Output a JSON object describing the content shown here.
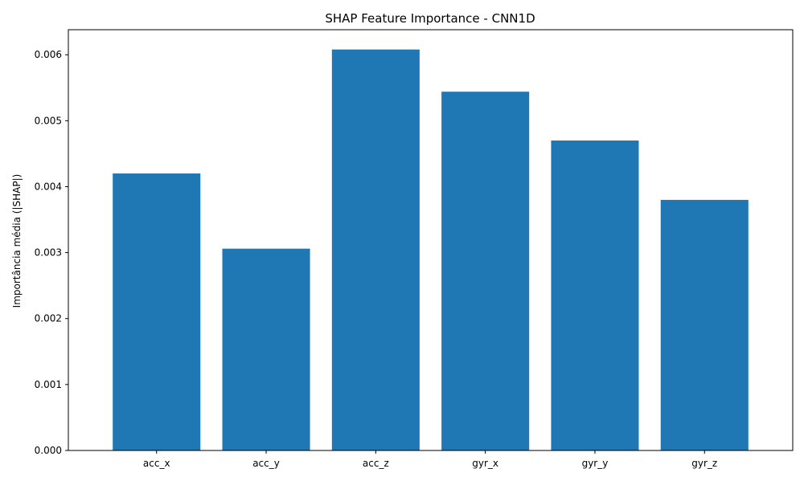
{
  "chart_data": {
    "type": "bar",
    "title": "SHAP Feature Importance - CNN1D",
    "xlabel": "",
    "ylabel": "Importância média (|SHAP|)",
    "categories": [
      "acc_x",
      "acc_y",
      "acc_z",
      "gyr_x",
      "gyr_y",
      "gyr_z"
    ],
    "values": [
      0.0042,
      0.00306,
      0.00608,
      0.00544,
      0.0047,
      0.0038
    ],
    "ylim": [
      0,
      0.00638
    ],
    "yticks": [
      "0.000",
      "0.001",
      "0.002",
      "0.003",
      "0.004",
      "0.005",
      "0.006"
    ],
    "ytick_values": [
      0,
      0.001,
      0.002,
      0.003,
      0.004,
      0.005,
      0.006
    ],
    "bar_color": "#1f77b4",
    "grid": false,
    "legend": "none"
  }
}
